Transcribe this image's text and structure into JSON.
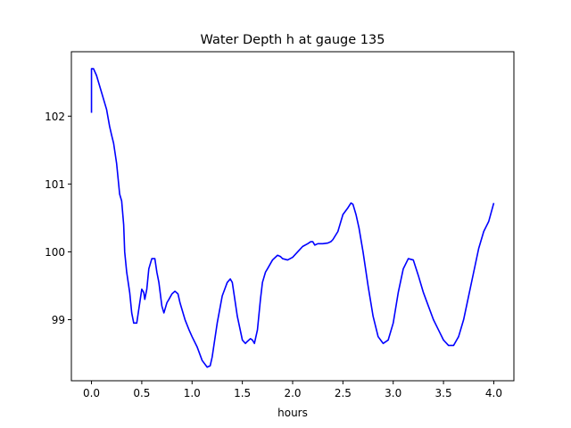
{
  "chart_data": {
    "type": "line",
    "title": "Water Depth h at gauge 135",
    "xlabel": "hours",
    "ylabel": "",
    "xlim": [
      -0.2,
      4.2
    ],
    "ylim": [
      98.1,
      102.95
    ],
    "xticks": [
      0.0,
      0.5,
      1.0,
      1.5,
      2.0,
      2.5,
      3.0,
      3.5,
      4.0
    ],
    "xtick_labels": [
      "0.0",
      "0.5",
      "1.0",
      "1.5",
      "2.0",
      "2.5",
      "3.0",
      "3.5",
      "4.0"
    ],
    "yticks": [
      99,
      100,
      101,
      102
    ],
    "ytick_labels": [
      "99",
      "100",
      "101",
      "102"
    ],
    "grid": false,
    "series": [
      {
        "name": "",
        "color": "#0000ff",
        "x": [
          0.0,
          0.0,
          0.02,
          0.05,
          0.1,
          0.15,
          0.18,
          0.2,
          0.22,
          0.25,
          0.28,
          0.3,
          0.32,
          0.33,
          0.35,
          0.38,
          0.4,
          0.42,
          0.45,
          0.47,
          0.5,
          0.52,
          0.53,
          0.55,
          0.57,
          0.6,
          0.63,
          0.65,
          0.67,
          0.7,
          0.72,
          0.75,
          0.77,
          0.8,
          0.83,
          0.86,
          0.88,
          0.9,
          0.93,
          0.97,
          1.0,
          1.05,
          1.1,
          1.15,
          1.18,
          1.2,
          1.22,
          1.25,
          1.3,
          1.35,
          1.38,
          1.4,
          1.42,
          1.45,
          1.5,
          1.53,
          1.55,
          1.58,
          1.6,
          1.62,
          1.65,
          1.68,
          1.7,
          1.73,
          1.75,
          1.8,
          1.85,
          1.88,
          1.9,
          1.95,
          2.0,
          2.05,
          2.1,
          2.15,
          2.18,
          2.2,
          2.22,
          2.25,
          2.3,
          2.35,
          2.38,
          2.4,
          2.45,
          2.5,
          2.55,
          2.58,
          2.6,
          2.63,
          2.66,
          2.7,
          2.75,
          2.8,
          2.85,
          2.9,
          2.95,
          3.0,
          3.05,
          3.1,
          3.15,
          3.2,
          3.25,
          3.3,
          3.35,
          3.4,
          3.45,
          3.5,
          3.55,
          3.6,
          3.65,
          3.7,
          3.75,
          3.8,
          3.85,
          3.9,
          3.95,
          4.0
        ],
        "y": [
          102.05,
          102.7,
          102.7,
          102.6,
          102.35,
          102.1,
          101.85,
          101.72,
          101.6,
          101.3,
          100.85,
          100.75,
          100.4,
          100.0,
          99.7,
          99.4,
          99.1,
          98.95,
          98.95,
          99.15,
          99.45,
          99.4,
          99.3,
          99.45,
          99.75,
          99.9,
          99.9,
          99.7,
          99.55,
          99.2,
          99.1,
          99.25,
          99.3,
          99.38,
          99.42,
          99.38,
          99.25,
          99.15,
          99.0,
          98.85,
          98.75,
          98.6,
          98.4,
          98.3,
          98.32,
          98.45,
          98.65,
          98.95,
          99.35,
          99.55,
          99.6,
          99.55,
          99.35,
          99.05,
          98.7,
          98.65,
          98.68,
          98.72,
          98.7,
          98.65,
          98.85,
          99.3,
          99.55,
          99.7,
          99.75,
          99.88,
          99.95,
          99.93,
          99.9,
          99.88,
          99.92,
          100.0,
          100.08,
          100.12,
          100.15,
          100.15,
          100.1,
          100.12,
          100.12,
          100.13,
          100.15,
          100.18,
          100.3,
          100.55,
          100.65,
          100.72,
          100.7,
          100.55,
          100.35,
          100.0,
          99.5,
          99.05,
          98.75,
          98.65,
          98.7,
          98.95,
          99.4,
          99.75,
          99.9,
          99.88,
          99.65,
          99.4,
          99.2,
          99.0,
          98.85,
          98.7,
          98.62,
          98.62,
          98.75,
          99.0,
          99.35,
          99.7,
          100.05,
          100.3,
          100.45,
          100.72
        ]
      }
    ]
  }
}
